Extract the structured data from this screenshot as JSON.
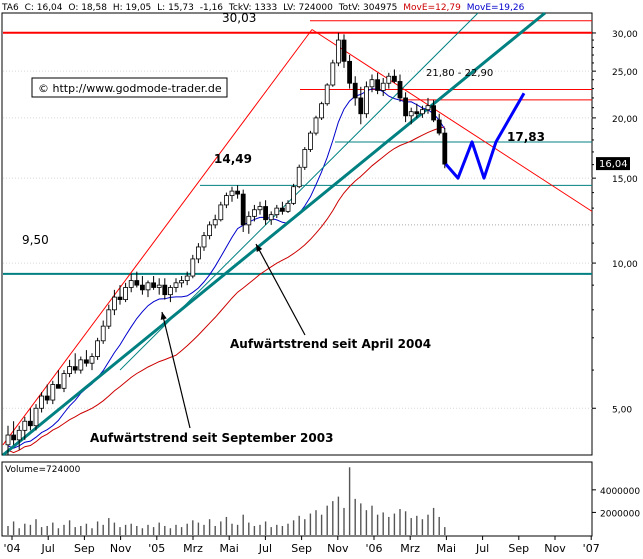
{
  "header": {
    "symbol": "TA6",
    "close": "C: 16,04",
    "open": "O: 18,58",
    "high": "H: 19,05",
    "low": "L: 15,73",
    "change": "-1,16",
    "tick_vol": "TckV: 1333",
    "last_vol": "LV: 724000",
    "total_vol": "TotV: 304975",
    "ma_red": "MovE=12,79",
    "ma_blue": "MovE=19,26"
  },
  "watermark": "© http://www.godmode-trader.de",
  "volume_label": "Volume=724000",
  "colors": {
    "up_candle": "#ffffff",
    "down_candle": "#000000",
    "resistance": "#ff0000",
    "trend": "#008080",
    "forecast": "#0000ff",
    "ma_long": "#cc0000",
    "ma_short": "#0000cc",
    "price_tag_bg": "#000000"
  },
  "chart_data": {
    "type": "candlestick",
    "y_scale": "log",
    "ylim": [
      4,
      33
    ],
    "y_ticks": [
      5,
      10,
      15,
      20,
      25,
      30
    ],
    "y_tick_labels": [
      "5,00",
      "10,00",
      "15,00",
      "20,00",
      "25,00",
      "30,00"
    ],
    "x_ticks": [
      "'04",
      "Jul",
      "Sep",
      "Nov",
      "'05",
      "Mrz",
      "Mai",
      "Jul",
      "Sep",
      "Nov",
      "'06",
      "Mrz",
      "Mai",
      "Jul",
      "Sep",
      "Nov",
      "'07"
    ],
    "last_price_label": "16,04",
    "last_price": 16.04,
    "levels": [
      {
        "label": "30,03",
        "value": 30.03
      },
      {
        "label": "21,80 - 22,90",
        "value": 22.9
      },
      {
        "label": "14,49",
        "value": 14.49
      },
      {
        "label": "9,50",
        "value": 9.5
      },
      {
        "label": "17,83",
        "value": 17.83
      }
    ],
    "annotations": [
      {
        "text": "Aufwärtstrend seit April 2004"
      },
      {
        "text": "Aufwärtstrend seit September 2003"
      }
    ],
    "forecast_path": [
      16.04,
      15.0,
      17.83,
      15.0,
      17.83,
      22.5
    ],
    "volume_ticks": [
      2000000,
      4000000
    ],
    "volume_tick_labels": [
      "2000000",
      "4000000"
    ],
    "candles": [
      [
        4.2,
        4.6,
        4.0,
        4.4
      ],
      [
        4.4,
        4.7,
        4.2,
        4.3
      ],
      [
        4.3,
        4.6,
        4.1,
        4.5
      ],
      [
        4.5,
        4.8,
        4.3,
        4.7
      ],
      [
        4.7,
        5.0,
        4.5,
        4.6
      ],
      [
        4.6,
        5.1,
        4.5,
        5.0
      ],
      [
        5.0,
        5.4,
        4.9,
        5.3
      ],
      [
        5.3,
        5.6,
        5.1,
        5.2
      ],
      [
        5.2,
        5.7,
        5.1,
        5.6
      ],
      [
        5.6,
        6.0,
        5.5,
        5.5
      ],
      [
        5.5,
        6.0,
        5.4,
        5.9
      ],
      [
        5.9,
        6.3,
        5.8,
        6.1
      ],
      [
        6.1,
        6.5,
        5.9,
        6.0
      ],
      [
        6.0,
        6.4,
        5.9,
        6.3
      ],
      [
        6.3,
        6.6,
        6.1,
        6.2
      ],
      [
        6.2,
        6.5,
        6.0,
        6.4
      ],
      [
        6.4,
        7.0,
        6.3,
        6.9
      ],
      [
        6.9,
        7.6,
        6.8,
        7.4
      ],
      [
        7.4,
        8.2,
        7.3,
        8.0
      ],
      [
        8.0,
        8.8,
        7.8,
        8.5
      ],
      [
        8.5,
        9.0,
        8.2,
        8.4
      ],
      [
        8.4,
        9.1,
        8.3,
        8.9
      ],
      [
        8.9,
        9.5,
        8.7,
        9.2
      ],
      [
        9.2,
        9.6,
        8.9,
        9.0
      ],
      [
        9.0,
        9.4,
        8.6,
        8.8
      ],
      [
        8.8,
        9.2,
        8.5,
        9.1
      ],
      [
        9.1,
        9.4,
        8.8,
        8.9
      ],
      [
        8.9,
        9.3,
        8.6,
        9.0
      ],
      [
        9.0,
        9.3,
        8.4,
        8.6
      ],
      [
        8.6,
        9.0,
        8.3,
        8.9
      ],
      [
        8.9,
        9.3,
        8.7,
        9.1
      ],
      [
        9.1,
        9.4,
        8.9,
        9.2
      ],
      [
        9.2,
        9.6,
        9.0,
        9.4
      ],
      [
        9.4,
        10.4,
        9.3,
        10.2
      ],
      [
        10.2,
        11.0,
        10.0,
        10.8
      ],
      [
        10.8,
        11.6,
        10.6,
        11.4
      ],
      [
        11.4,
        12.2,
        11.2,
        12.0
      ],
      [
        12.0,
        12.6,
        11.8,
        12.3
      ],
      [
        12.3,
        13.4,
        12.2,
        13.2
      ],
      [
        13.2,
        14.0,
        13.0,
        13.8
      ],
      [
        13.8,
        14.4,
        13.4,
        14.1
      ],
      [
        14.1,
        14.5,
        13.6,
        13.9
      ],
      [
        13.9,
        14.2,
        11.6,
        12.0
      ],
      [
        12.0,
        12.8,
        11.5,
        12.5
      ],
      [
        12.5,
        13.2,
        12.2,
        12.9
      ],
      [
        12.9,
        13.4,
        12.6,
        13.1
      ],
      [
        13.1,
        13.5,
        12.0,
        12.3
      ],
      [
        12.3,
        12.8,
        12.0,
        12.6
      ],
      [
        12.6,
        13.2,
        12.4,
        13.0
      ],
      [
        13.0,
        13.4,
        12.6,
        12.8
      ],
      [
        12.8,
        13.5,
        12.7,
        13.3
      ],
      [
        13.3,
        14.6,
        13.2,
        14.4
      ],
      [
        14.4,
        16.0,
        14.3,
        15.8
      ],
      [
        15.8,
        17.4,
        15.6,
        17.2
      ],
      [
        17.2,
        18.8,
        17.0,
        18.6
      ],
      [
        18.6,
        20.2,
        18.4,
        20.0
      ],
      [
        20.0,
        21.6,
        19.8,
        21.4
      ],
      [
        21.4,
        23.6,
        21.2,
        23.4
      ],
      [
        23.4,
        26.4,
        23.2,
        26.0
      ],
      [
        26.0,
        30.03,
        25.6,
        29.0
      ],
      [
        29.0,
        29.8,
        25.4,
        26.2
      ],
      [
        26.2,
        27.0,
        23.0,
        23.6
      ],
      [
        23.6,
        24.4,
        21.2,
        22.0
      ],
      [
        22.0,
        23.2,
        19.4,
        20.4
      ],
      [
        20.4,
        23.8,
        20.0,
        23.2
      ],
      [
        23.2,
        24.6,
        22.6,
        24.0
      ],
      [
        24.0,
        24.8,
        22.4,
        22.8
      ],
      [
        22.8,
        24.2,
        22.2,
        23.6
      ],
      [
        23.6,
        24.8,
        23.0,
        24.4
      ],
      [
        24.4,
        25.2,
        23.6,
        23.8
      ],
      [
        23.8,
        24.6,
        21.6,
        22.0
      ],
      [
        22.0,
        22.6,
        19.6,
        20.2
      ],
      [
        20.2,
        21.0,
        19.4,
        20.6
      ],
      [
        20.6,
        21.4,
        20.0,
        20.4
      ],
      [
        20.4,
        21.2,
        20.0,
        20.8
      ],
      [
        20.8,
        22.0,
        20.4,
        21.2
      ],
      [
        21.2,
        21.8,
        19.6,
        19.8
      ],
      [
        19.8,
        20.4,
        18.4,
        18.6
      ],
      [
        18.6,
        19.05,
        15.73,
        16.04
      ]
    ],
    "volume": [
      0.8,
      1.2,
      0.6,
      1.0,
      0.9,
      1.4,
      0.7,
      0.8,
      1.1,
      0.6,
      0.9,
      1.3,
      0.7,
      0.8,
      1.0,
      0.6,
      1.2,
      0.9,
      1.5,
      1.1,
      0.7,
      0.9,
      1.0,
      0.8,
      0.6,
      0.9,
      0.7,
      1.1,
      0.8,
      0.6,
      0.9,
      0.7,
      1.0,
      1.3,
      1.1,
      0.9,
      1.4,
      0.8,
      1.2,
      1.6,
      1.0,
      0.9,
      1.8,
      1.1,
      0.8,
      0.9,
      1.2,
      0.7,
      0.9,
      0.8,
      1.0,
      1.3,
      1.7,
      1.4,
      1.9,
      2.2,
      1.8,
      2.6,
      3.0,
      3.4,
      2.4,
      6.0,
      3.2,
      2.8,
      2.2,
      2.6,
      1.8,
      2.0,
      1.6,
      1.9,
      2.3,
      2.1,
      1.5,
      1.7,
      1.4,
      1.8,
      2.4,
      1.6,
      0.7
    ]
  }
}
